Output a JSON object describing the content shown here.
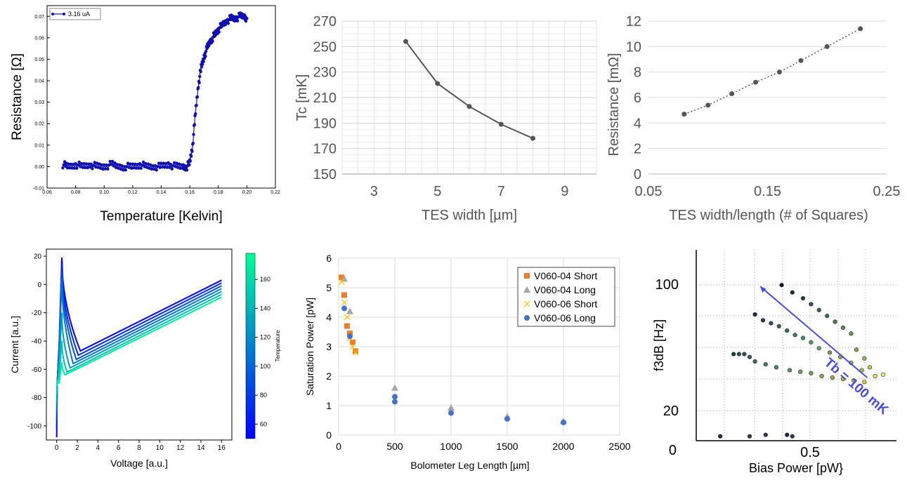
{
  "chart_data": [
    {
      "id": "p1",
      "type": "scatter",
      "xlabel": "Temperature [Kelvin]",
      "ylabel": "Resistance [Ω]",
      "xlim": [
        0.06,
        0.22
      ],
      "ylim": [
        -0.01,
        0.075
      ],
      "xticks": [
        "0.06",
        "0.08",
        "0.10",
        "0.12",
        "0.14",
        "0.16",
        "0.18",
        "0.20",
        "0.22"
      ],
      "yticks": [
        "-0.01",
        "0.00",
        "0.01",
        "0.02",
        "0.03",
        "0.04",
        "0.05",
        "0.06",
        "0.07"
      ],
      "legend_position": "top-left",
      "series": [
        {
          "name": "3.16 uA",
          "color": "#1010b0",
          "x": [
            0.071,
            0.075,
            0.08,
            0.085,
            0.09,
            0.095,
            0.1,
            0.105,
            0.11,
            0.115,
            0.12,
            0.125,
            0.13,
            0.135,
            0.14,
            0.145,
            0.15,
            0.155,
            0.158,
            0.16,
            0.162,
            0.164,
            0.166,
            0.168,
            0.17,
            0.172,
            0.174,
            0.176,
            0.178,
            0.18,
            0.183,
            0.186,
            0.189,
            0.192,
            0.195,
            0.198,
            0.2
          ],
          "y": [
            0.001,
            0.0,
            0.001,
            0.0,
            0.001,
            0.0,
            0.0,
            0.001,
            0.0,
            0.0,
            0.0,
            0.001,
            0.0,
            0.0,
            0.0,
            0.001,
            0.0,
            0.0,
            0.0,
            0.002,
            0.01,
            0.025,
            0.038,
            0.046,
            0.051,
            0.055,
            0.058,
            0.06,
            0.062,
            0.064,
            0.066,
            0.068,
            0.069,
            0.069,
            0.07,
            0.07,
            0.069
          ]
        }
      ]
    },
    {
      "id": "p2",
      "type": "line",
      "xlabel": "TES width [µm]",
      "ylabel": "Tc [mK]",
      "xlim": [
        2,
        10
      ],
      "ylim": [
        150,
        270
      ],
      "xticks": [
        "3",
        "5",
        "7",
        "9"
      ],
      "yticks": [
        "150",
        "170",
        "190",
        "210",
        "230",
        "250",
        "270"
      ],
      "series": [
        {
          "color": "#555555",
          "x": [
            4,
            5,
            6,
            7,
            8
          ],
          "y": [
            254,
            221,
            203,
            189,
            178
          ]
        }
      ]
    },
    {
      "id": "p3",
      "type": "line",
      "xlabel": "TES width/length (# of Squares)",
      "ylabel": "Resistance [mΩ]",
      "xlim": [
        0.05,
        0.25
      ],
      "ylim": [
        0,
        12
      ],
      "xticks": [
        "0.05",
        "0.15",
        "0.25"
      ],
      "yticks": [
        "0",
        "2",
        "4",
        "6",
        "8",
        "10",
        "12"
      ],
      "series": [
        {
          "color": "#555555",
          "x": [
            0.08,
            0.1,
            0.12,
            0.14,
            0.16,
            0.178,
            0.2,
            0.228
          ],
          "y": [
            4.7,
            5.4,
            6.3,
            7.2,
            8.0,
            8.9,
            10.0,
            11.4
          ]
        }
      ]
    },
    {
      "id": "p4",
      "type": "line",
      "xlabel": "Voltage [a.u.]",
      "ylabel": "Current [a.u.]",
      "xlim": [
        -1,
        17
      ],
      "ylim": [
        -110,
        25
      ],
      "xticks": [
        "0",
        "2",
        "4",
        "6",
        "8",
        "10",
        "12",
        "14",
        "16"
      ],
      "yticks": [
        "-100",
        "-80",
        "-60",
        "-40",
        "-20",
        "0",
        "20"
      ],
      "colorbar": {
        "label": "Temperature",
        "range": [
          50,
          178
        ],
        "ticks": [
          "60",
          "80",
          "100",
          "120",
          "140",
          "160"
        ],
        "colors": [
          "#0000ff",
          "#00ff99"
        ]
      },
      "curves": [
        {
          "temp": 50,
          "peak": 19,
          "vmin": 2.3,
          "imin": -47,
          "vend": 16,
          "iend": 3
        },
        {
          "temp": 70,
          "peak": 14,
          "vmin": 2.1,
          "imin": -50,
          "vend": 16,
          "iend": 1
        },
        {
          "temp": 90,
          "peak": 9,
          "vmin": 1.9,
          "imin": -53,
          "vend": 16,
          "iend": -1
        },
        {
          "temp": 110,
          "peak": 4,
          "vmin": 1.6,
          "imin": -56,
          "vend": 16,
          "iend": -3
        },
        {
          "temp": 130,
          "peak": -20,
          "vmin": 1.3,
          "imin": -59,
          "vend": 16,
          "iend": -5
        },
        {
          "temp": 150,
          "peak": -40,
          "vmin": 1.0,
          "imin": -62,
          "vend": 16,
          "iend": -7
        },
        {
          "temp": 170,
          "peak": -55,
          "vmin": 0.8,
          "imin": -64,
          "vend": 16,
          "iend": -9
        }
      ]
    },
    {
      "id": "p5",
      "type": "scatter",
      "xlabel": "Bolometer Leg Length [µm]",
      "ylabel": "Saturation Power [pW]",
      "xlim": [
        0,
        2500
      ],
      "ylim": [
        0,
        6
      ],
      "xticks": [
        "0",
        "500",
        "1000",
        "1500",
        "2000",
        "2500"
      ],
      "yticks": [
        "0",
        "1",
        "2",
        "3",
        "4",
        "5",
        "6"
      ],
      "legend_position": "top-right",
      "series": [
        {
          "name": "V060-04 Short",
          "color": "#ed7d31",
          "marker": "square",
          "x": [
            25,
            50,
            75,
            100,
            125,
            150
          ],
          "y": [
            5.35,
            4.75,
            3.7,
            3.45,
            3.15,
            2.85
          ]
        },
        {
          "name": "V060-04 Long",
          "color": "#a5a5a5",
          "marker": "triangle",
          "x": [
            50,
            100,
            500,
            1000,
            1500,
            2000
          ],
          "y": [
            5.3,
            4.2,
            1.6,
            0.93,
            0.63,
            0.47
          ]
        },
        {
          "name": "V060-06 Short",
          "color": "#ffc000",
          "marker": "x",
          "x": [
            25,
            50,
            75,
            100,
            125,
            150
          ],
          "y": [
            5.2,
            4.5,
            4.0,
            3.3,
            3.0,
            2.8
          ]
        },
        {
          "name": "V060-06 Long",
          "color": "#4472c4",
          "marker": "circle",
          "x": [
            50,
            100,
            500,
            500,
            1000,
            1500,
            2000
          ],
          "y": [
            4.3,
            3.35,
            1.3,
            1.13,
            0.75,
            0.55,
            0.43
          ]
        }
      ]
    },
    {
      "id": "p6",
      "type": "scatter",
      "xlabel": "Bias Power [pW}",
      "ylabel": "f3dB [Hz]",
      "xlim": [
        0.1,
        0.85
      ],
      "ylim": [
        0,
        130
      ],
      "xticks": [
        "0.5"
      ],
      "yticks": [
        "0",
        "20",
        "100"
      ],
      "annotation": {
        "text": "Tb = 100 mK",
        "color": "#4b4bdc",
        "x1": 0.34,
        "y1": 105,
        "x2": 0.74,
        "y2": 43
      },
      "points": [
        {
          "x": 0.24,
          "y": 59,
          "c": "#1b3b3b"
        },
        {
          "x": 0.26,
          "y": 59,
          "c": "#2a4a4a"
        },
        {
          "x": 0.28,
          "y": 59,
          "c": "#2f4f4f"
        },
        {
          "x": 0.3,
          "y": 57,
          "c": "#3a5a5a"
        },
        {
          "x": 0.32,
          "y": 54,
          "c": "#3b6b5b"
        },
        {
          "x": 0.36,
          "y": 52,
          "c": "#4a7a5a"
        },
        {
          "x": 0.4,
          "y": 50,
          "c": "#4a8a6a"
        },
        {
          "x": 0.45,
          "y": 48,
          "c": "#5a9a5a"
        },
        {
          "x": 0.49,
          "y": 47,
          "c": "#6aa05a"
        },
        {
          "x": 0.53,
          "y": 46,
          "c": "#7aa05a"
        },
        {
          "x": 0.57,
          "y": 44,
          "c": "#8aaa4a"
        },
        {
          "x": 0.61,
          "y": 43,
          "c": "#9aaa4a"
        },
        {
          "x": 0.65,
          "y": 42,
          "c": "#aaba4a"
        },
        {
          "x": 0.69,
          "y": 41,
          "c": "#bbbb44"
        },
        {
          "x": 0.73,
          "y": 40,
          "c": "#cccc44"
        },
        {
          "x": 0.77,
          "y": 44,
          "c": "#dddd55"
        },
        {
          "x": 0.8,
          "y": 45,
          "c": "#eeee66"
        },
        {
          "x": 0.32,
          "y": 86,
          "c": "#1b2b3b"
        },
        {
          "x": 0.35,
          "y": 82,
          "c": "#2a3a4a"
        },
        {
          "x": 0.38,
          "y": 80,
          "c": "#2f4f5f"
        },
        {
          "x": 0.41,
          "y": 78,
          "c": "#3a5a5a"
        },
        {
          "x": 0.44,
          "y": 75,
          "c": "#3b6b5b"
        },
        {
          "x": 0.47,
          "y": 72,
          "c": "#4a7a6a"
        },
        {
          "x": 0.5,
          "y": 70,
          "c": "#4a8a6a"
        },
        {
          "x": 0.53,
          "y": 67,
          "c": "#5a9a5a"
        },
        {
          "x": 0.56,
          "y": 63,
          "c": "#6aa06a"
        },
        {
          "x": 0.6,
          "y": 60,
          "c": "#7aa05a"
        },
        {
          "x": 0.64,
          "y": 57,
          "c": "#8aaa5a"
        },
        {
          "x": 0.68,
          "y": 53,
          "c": "#9aba5a"
        },
        {
          "x": 0.72,
          "y": 48,
          "c": "#aabb55"
        },
        {
          "x": 0.75,
          "y": 50,
          "c": "#bbcc55"
        },
        {
          "x": 0.42,
          "y": 106,
          "c": "#0b1b2b"
        },
        {
          "x": 0.46,
          "y": 101,
          "c": "#1a2a3a"
        },
        {
          "x": 0.5,
          "y": 97,
          "c": "#2a3a4a"
        },
        {
          "x": 0.53,
          "y": 93,
          "c": "#2f4f4f"
        },
        {
          "x": 0.56,
          "y": 89,
          "c": "#3a5a5a"
        },
        {
          "x": 0.59,
          "y": 85,
          "c": "#3b6b5b"
        },
        {
          "x": 0.62,
          "y": 81,
          "c": "#4a7a5a"
        },
        {
          "x": 0.65,
          "y": 77,
          "c": "#5a8a5a"
        },
        {
          "x": 0.68,
          "y": 73,
          "c": "#6a9a5a"
        },
        {
          "x": 0.7,
          "y": 62,
          "c": "#7aaa5a"
        },
        {
          "x": 0.73,
          "y": 56,
          "c": "#8aba5a"
        },
        {
          "x": 0.19,
          "y": 3,
          "c": "#1b2b3b"
        },
        {
          "x": 0.3,
          "y": 3,
          "c": "#2a3a4a"
        },
        {
          "x": 0.36,
          "y": 4,
          "c": "#2a3a4a"
        },
        {
          "x": 0.44,
          "y": 4,
          "c": "#1a2a3a"
        },
        {
          "x": 0.46,
          "y": 3,
          "c": "#2a3a4a"
        }
      ]
    }
  ]
}
